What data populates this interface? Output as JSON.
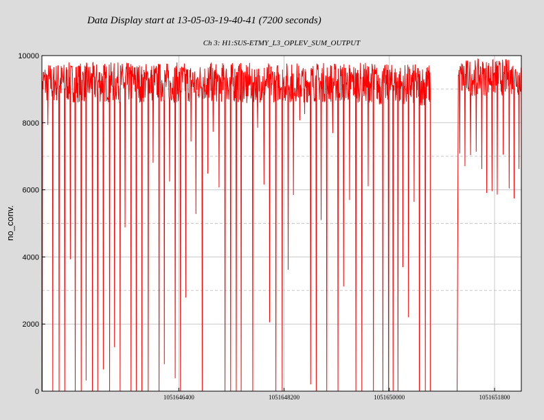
{
  "header": {
    "title": "Data Display start at 13-05-03-19-40-41 (7200 seconds)"
  },
  "chart_data": {
    "type": "line",
    "subtitle": "Ch 3: H1:SUS-ETMY_L3_OPLEV_SUM_OUTPUT",
    "ylabel": "no_conv.",
    "xlabel": "",
    "xlim": [
      1051644058,
      1051652258
    ],
    "ylim": [
      0,
      10000
    ],
    "grid": true,
    "line_color": "#ff0000",
    "x_tick_values": [
      1051646400,
      1051648200,
      1051650000,
      1051651800
    ],
    "x_tick_labels": [
      "1051646400",
      "1051648200",
      "1051650000",
      "1051651800"
    ],
    "y_tick_values": [
      0,
      2000,
      4000,
      6000,
      8000,
      10000
    ],
    "y_tick_labels": [
      "0",
      "2000",
      "4000",
      "6000",
      "8000",
      "10000"
    ],
    "series": [
      {
        "segments": [
          {
            "x_start": 1051644058,
            "x_end": 1051649800,
            "band_low": 8600,
            "band_high": 9800,
            "dip_period_s": 95,
            "dip_depth": 0
          },
          {
            "x_start": 1051649800,
            "x_end": 1051650700,
            "band_low": 8500,
            "band_high": 9750,
            "dip_period_s": 95,
            "dip_depth": 0
          },
          {
            "x_start": 1051651180,
            "x_end": 1051652258,
            "band_low": 8800,
            "band_high": 9900,
            "dip_period_s": 95,
            "dip_depth": 5700
          }
        ],
        "gap": {
          "x_start": 1051650700,
          "x_end": 1051651180,
          "fall_to": 0,
          "rise_from": 0
        }
      }
    ]
  }
}
